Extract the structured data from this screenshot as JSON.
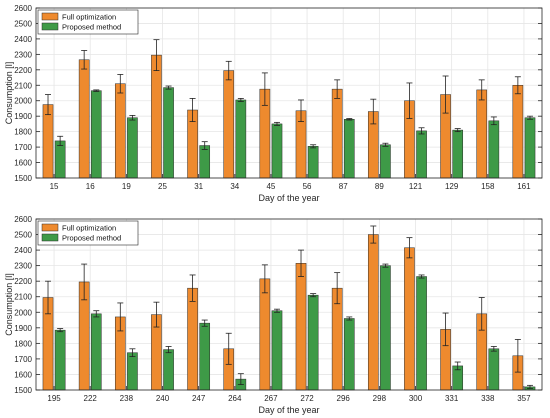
{
  "colors": {
    "full": "#ee8a2e",
    "proposed": "#3e9a47",
    "error_bar": "#222222",
    "grid": "#e6e6e6",
    "axis": "#262626"
  },
  "chart_data": [
    {
      "type": "bar",
      "xlabel": "Day of the year",
      "ylabel": "Consumption [l]",
      "ylim": [
        1500,
        2600
      ],
      "yticks": [
        1500,
        1600,
        1700,
        1800,
        1900,
        2000,
        2100,
        2200,
        2300,
        2400,
        2500,
        2600
      ],
      "grid": true,
      "legend": "top-left",
      "categories": [
        "15",
        "16",
        "19",
        "25",
        "31",
        "34",
        "45",
        "56",
        "87",
        "89",
        "121",
        "129",
        "158",
        "161"
      ],
      "series": [
        {
          "name": "Full optimization",
          "values": [
            1975,
            2265,
            2110,
            2295,
            1940,
            2195,
            2075,
            1935,
            2075,
            1930,
            2000,
            2040,
            2070,
            2100
          ],
          "error": [
            65,
            60,
            60,
            100,
            75,
            60,
            105,
            70,
            60,
            80,
            115,
            120,
            65,
            55
          ]
        },
        {
          "name": "Proposed method",
          "values": [
            1740,
            2065,
            1890,
            2085,
            1710,
            2005,
            1850,
            1705,
            1880,
            1715,
            1805,
            1810,
            1870,
            1890
          ],
          "error": [
            30,
            5,
            15,
            10,
            25,
            10,
            10,
            10,
            5,
            10,
            20,
            10,
            25,
            10
          ]
        }
      ]
    },
    {
      "type": "bar",
      "xlabel": "Day of the year",
      "ylabel": "Consumption [l]",
      "ylim": [
        1500,
        2600
      ],
      "yticks": [
        1500,
        1600,
        1700,
        1800,
        1900,
        2000,
        2100,
        2200,
        2300,
        2400,
        2500,
        2600
      ],
      "grid": true,
      "legend": "top-left",
      "categories": [
        "195",
        "222",
        "238",
        "240",
        "247",
        "264",
        "267",
        "272",
        "296",
        "298",
        "300",
        "331",
        "338",
        "357"
      ],
      "series": [
        {
          "name": "Full optimization",
          "values": [
            2095,
            2195,
            1970,
            1985,
            2155,
            1765,
            2215,
            2315,
            2155,
            2500,
            2415,
            1890,
            1990,
            1720
          ],
          "error": [
            105,
            115,
            90,
            80,
            85,
            100,
            90,
            85,
            100,
            55,
            65,
            105,
            105,
            105
          ]
        },
        {
          "name": "Proposed method",
          "values": [
            1885,
            1990,
            1740,
            1760,
            1930,
            1570,
            2010,
            2110,
            1960,
            2300,
            2230,
            1655,
            1765,
            1520
          ],
          "error": [
            10,
            20,
            25,
            20,
            20,
            35,
            10,
            10,
            10,
            10,
            10,
            25,
            15,
            10
          ]
        }
      ]
    }
  ]
}
